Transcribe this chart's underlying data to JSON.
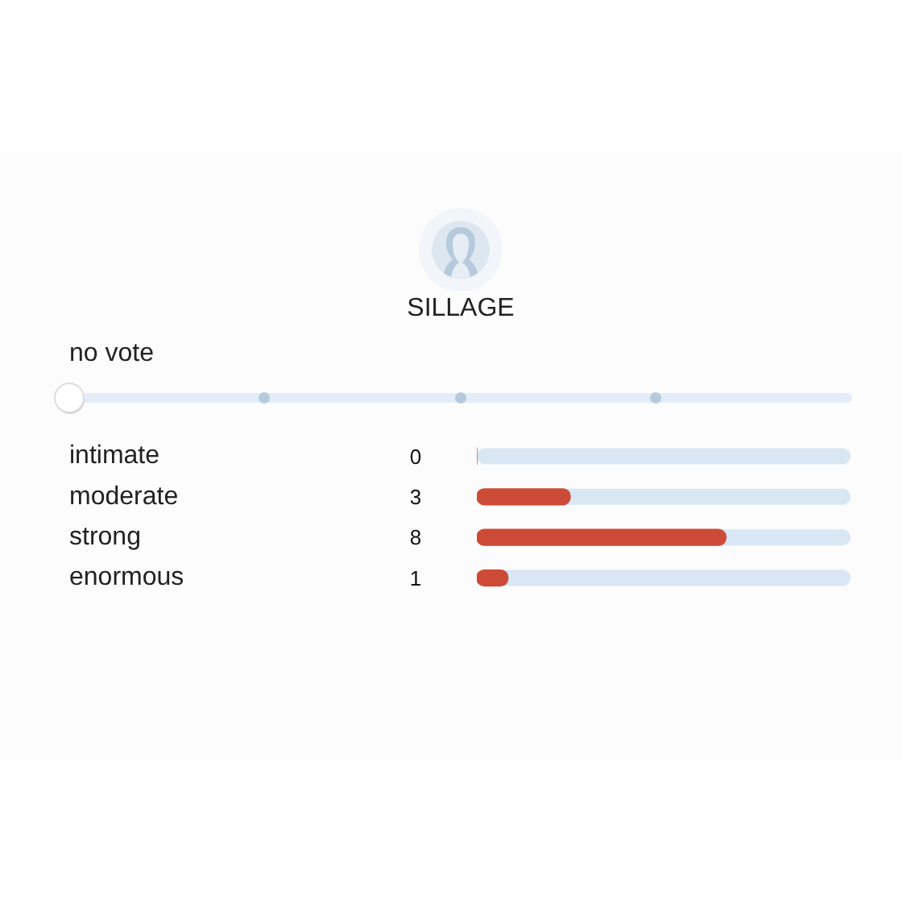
{
  "chart_data": {
    "type": "bar",
    "orientation": "horizontal",
    "title": "SILLAGE",
    "annotations": [
      "no vote"
    ],
    "categories": [
      "intimate",
      "moderate",
      "strong",
      "enormous"
    ],
    "values": [
      0,
      3,
      8,
      1
    ],
    "color": "#cc4b37",
    "xlim": [
      0,
      12
    ],
    "data_labels": true,
    "tick_labels": "y"
  }
}
